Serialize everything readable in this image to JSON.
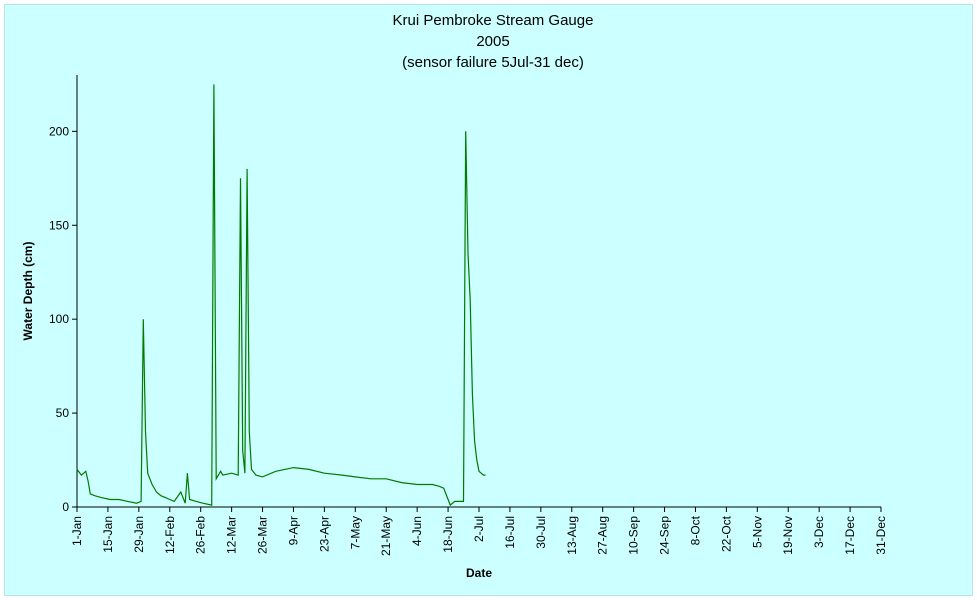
{
  "chart_data": {
    "type": "line",
    "title": [
      "Krui Pembroke Stream Gauge",
      "2005",
      "(sensor failure 5Jul-31 dec)"
    ],
    "xlabel": "Date",
    "ylabel": "Water Depth (cm)",
    "ylim": [
      0,
      230
    ],
    "yticks": [
      0,
      50,
      100,
      150,
      200
    ],
    "xlim": [
      "1-Jan",
      "31-Dec"
    ],
    "xticks": [
      "1-Jan",
      "15-Jan",
      "29-Jan",
      "12-Feb",
      "26-Feb",
      "12-Mar",
      "26-Mar",
      "9-Apr",
      "23-Apr",
      "7-May",
      "21-May",
      "4-Jun",
      "18-Jun",
      "2-Jul",
      "16-Jul",
      "30-Jul",
      "13-Aug",
      "27-Aug",
      "10-Sep",
      "24-Sep",
      "8-Oct",
      "22-Oct",
      "5-Nov",
      "19-Nov",
      "3-Dec",
      "17-Dec",
      "31-Dec"
    ],
    "grid": false,
    "legend": "none",
    "colors": {
      "series": "#007a00",
      "plot_background": "#ccffff",
      "axis": "#000000"
    },
    "series": [
      {
        "x": [
          "1-Jan",
          "3-Jan",
          "5-Jan",
          "6-Jan",
          "7-Jan",
          "9-Jan",
          "12-Jan",
          "16-Jan",
          "20-Jan",
          "24-Jan",
          "28-Jan",
          "30-Jan",
          "31-Jan",
          "1-Feb",
          "2-Feb",
          "3-Feb",
          "4-Feb",
          "6-Feb",
          "8-Feb",
          "10-Feb",
          "12-Feb",
          "14-Feb",
          "17-Feb",
          "19-Feb",
          "20-Feb",
          "21-Feb",
          "24-Feb",
          "27-Feb",
          "3-Mar",
          "4-Mar",
          "5-Mar",
          "6-Mar",
          "7-Mar",
          "8-Mar",
          "12-Mar",
          "15-Mar",
          "16-Mar",
          "17-Mar",
          "18-Mar",
          "19-Mar",
          "20-Mar",
          "21-Mar",
          "23-Mar",
          "26-Mar",
          "1-Apr",
          "9-Apr",
          "16-Apr",
          "23-Apr",
          "1-May",
          "7-May",
          "14-May",
          "21-May",
          "28-May",
          "4-Jun",
          "11-Jun",
          "14-Jun",
          "16-Jun",
          "17-Jun",
          "19-Jun",
          "21-Jun",
          "25-Jun",
          "26-Jun",
          "27-Jun",
          "28-Jun",
          "29-Jun",
          "30-Jun",
          "1-Jul",
          "2-Jul",
          "3-Jul",
          "4-Jul",
          "5-Jul"
        ],
        "y": [
          20,
          17,
          19,
          14,
          7,
          6,
          5,
          4,
          4,
          3,
          2,
          3,
          100,
          40,
          18,
          15,
          12,
          8,
          6,
          5,
          4,
          3,
          8,
          2,
          18,
          4,
          3,
          2,
          1,
          225,
          15,
          17,
          19,
          17,
          18,
          17,
          175,
          30,
          18,
          180,
          40,
          20,
          17,
          16,
          19,
          21,
          20,
          18,
          17,
          16,
          15,
          15,
          13,
          12,
          12,
          11,
          10,
          7,
          1,
          3,
          3,
          200,
          135,
          110,
          60,
          35,
          25,
          19,
          18,
          17,
          17
        ]
      }
    ]
  }
}
